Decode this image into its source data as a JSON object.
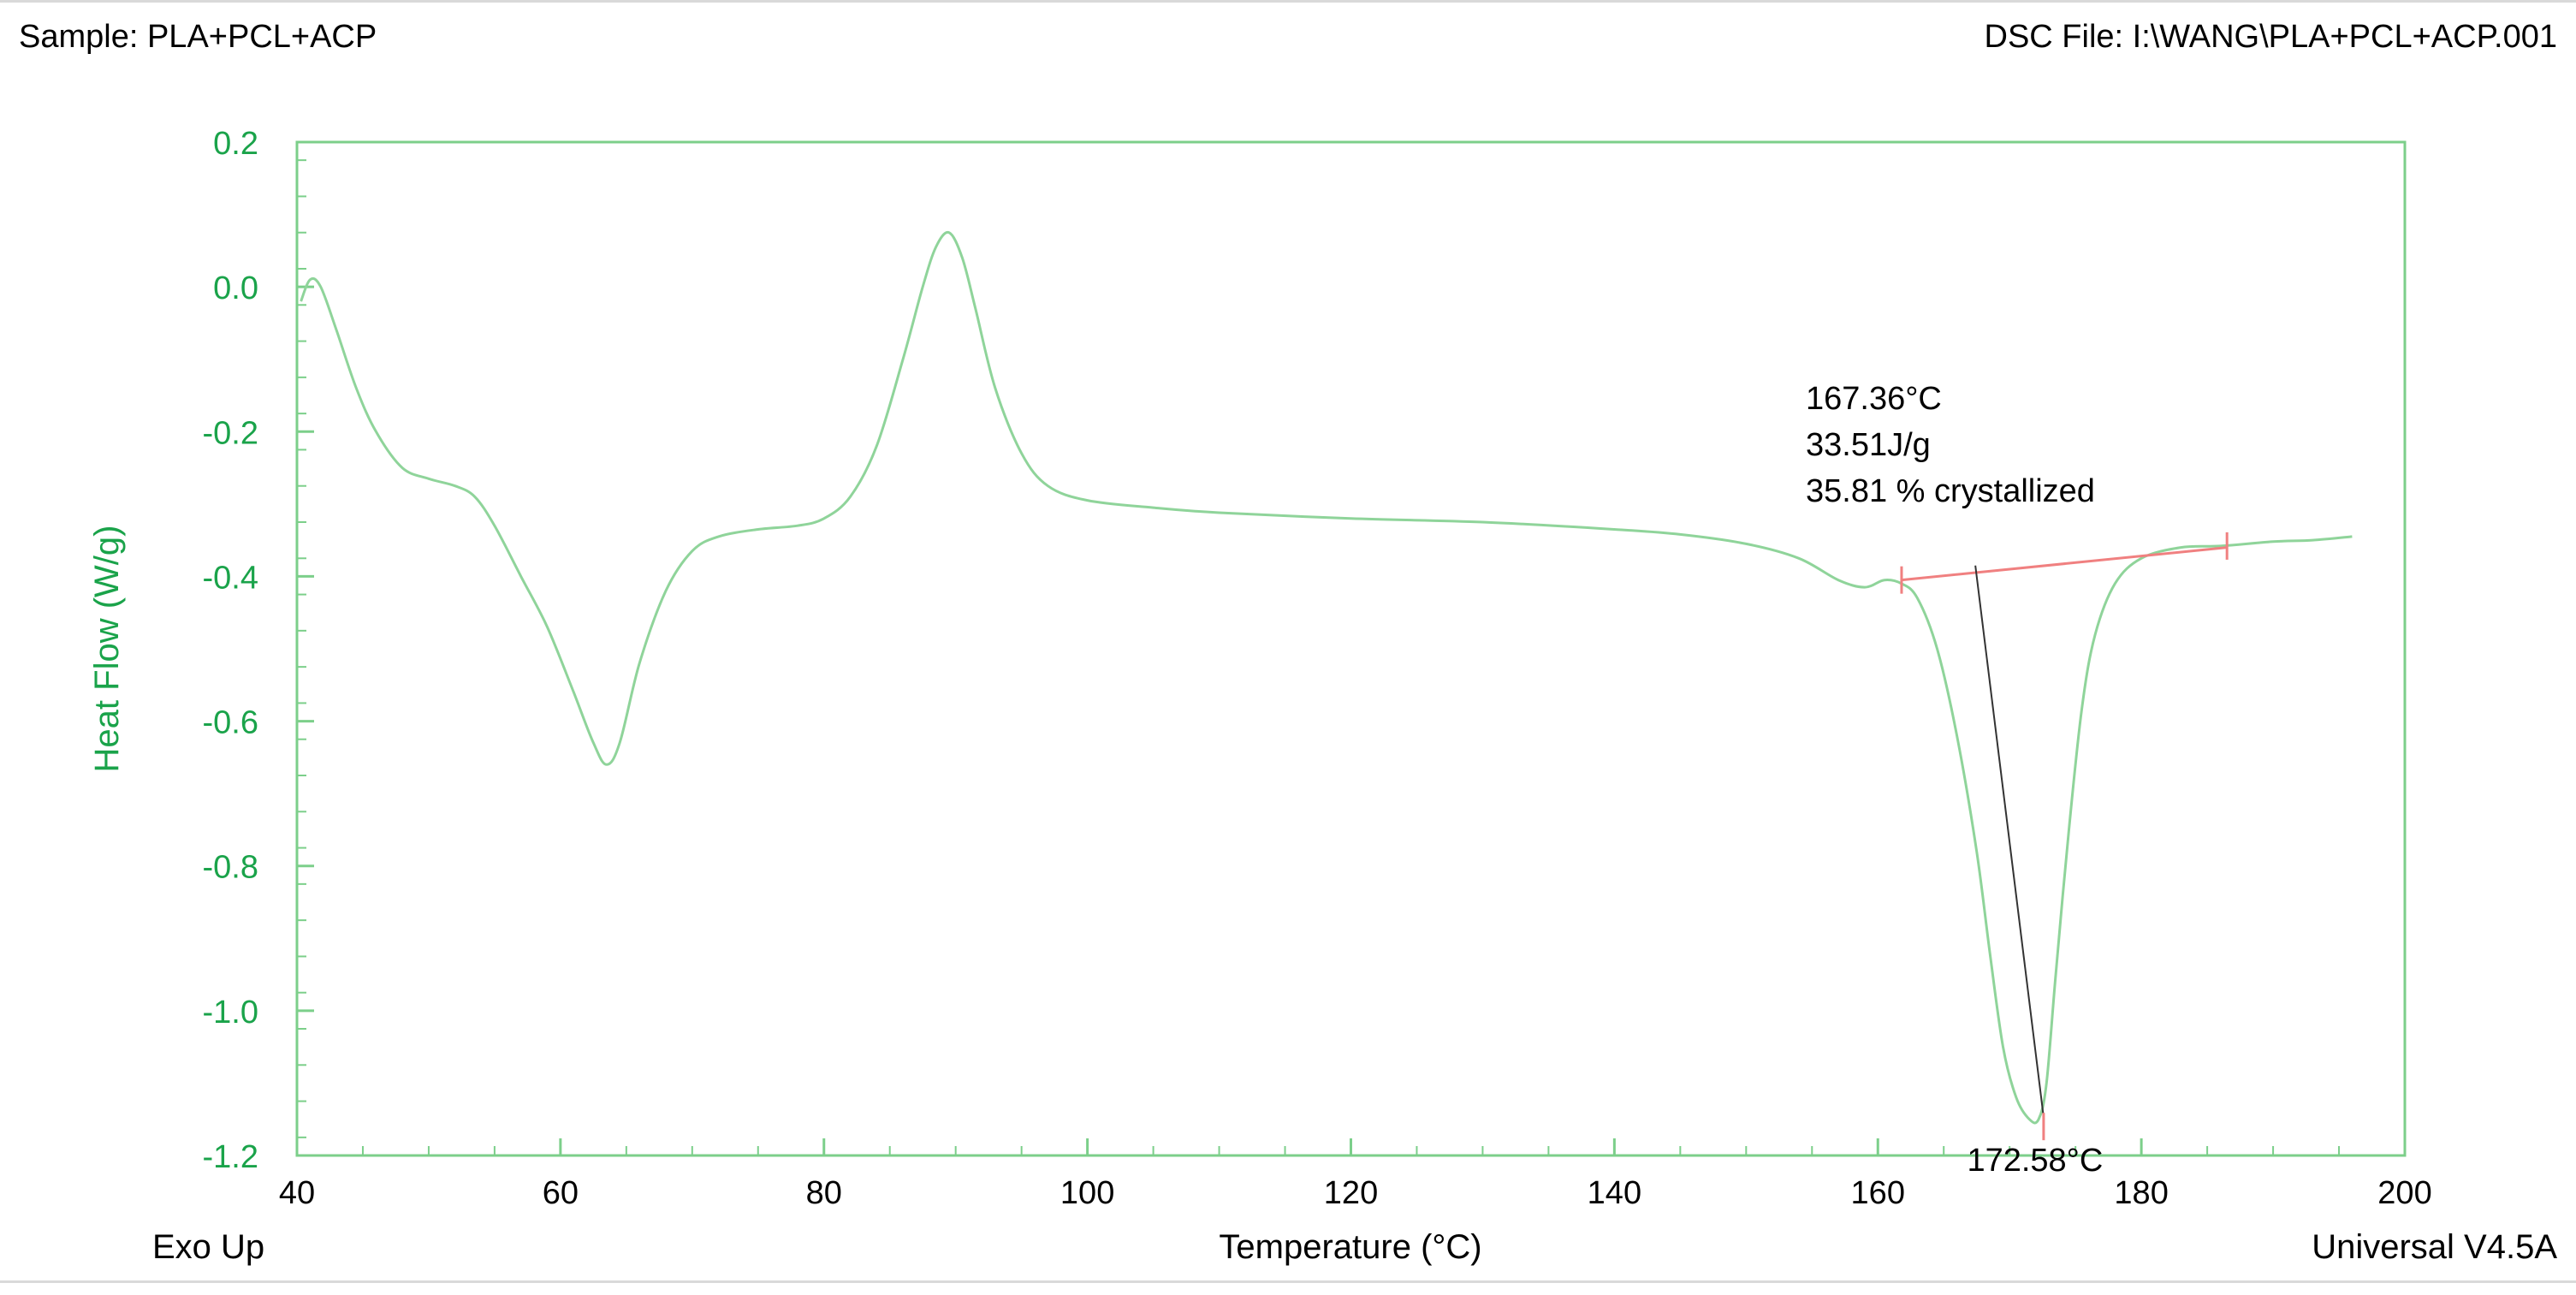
{
  "header": {
    "sample": "Sample: PLA+PCL+ACP",
    "file": "DSC File: I:\\WANG\\PLA+PCL+ACP.001"
  },
  "footer": {
    "exo": "Exo Up",
    "version": "Universal V4.5A"
  },
  "colors": {
    "curve": "#8fd49a",
    "axis": "#7ccf8a",
    "y_text": "#1aa34a",
    "baseline": "#f08080",
    "tangent": "#333333"
  },
  "chart_data": {
    "type": "line",
    "xlabel": "Temperature (°C)",
    "ylabel": "Heat Flow (W/g)",
    "xlim": [
      40,
      200
    ],
    "ylim": [
      -1.2,
      0.2
    ],
    "xticks": [
      40,
      60,
      80,
      100,
      120,
      140,
      160,
      180,
      200
    ],
    "yticks": [
      0.2,
      0.0,
      -0.2,
      -0.4,
      -0.6,
      -0.8,
      -1.0,
      -1.2
    ],
    "ytick_labels": [
      "0.2",
      "0.0",
      "-0.2",
      "-0.4",
      "-0.6",
      "-0.8",
      "-1.0",
      "-1.2"
    ],
    "grid": false,
    "series": [
      {
        "x": [
          40.3,
          41.0,
          41.8,
          43.0,
          44.5,
          46.0,
          48.0,
          50.0,
          52.0,
          53.5,
          55.0,
          57.0,
          59.0,
          61.0,
          62.5,
          63.5,
          64.5,
          66.0,
          68.0,
          70.0,
          72.0,
          75.0,
          78.0,
          80.0,
          82.0,
          84.0,
          86.0,
          87.5,
          88.5,
          89.5,
          90.5,
          91.5,
          93.0,
          95.0,
          97.0,
          100.0,
          105.0,
          110.0,
          120.0,
          130.0,
          140.0,
          145.0,
          150.0,
          154.0,
          157.0,
          159.0,
          160.5,
          161.8,
          163.0,
          164.5,
          166.0,
          167.5,
          168.5,
          169.5,
          170.5,
          171.5,
          172.2,
          172.8,
          173.5,
          174.5,
          175.5,
          176.5,
          178.0,
          180.0,
          183.0,
          186.0,
          190.0,
          193.0,
          196.0
        ],
        "y": [
          -0.02,
          0.01,
          0.0,
          -0.06,
          -0.14,
          -0.2,
          -0.25,
          -0.265,
          -0.275,
          -0.29,
          -0.33,
          -0.4,
          -0.47,
          -0.56,
          -0.63,
          -0.66,
          -0.63,
          -0.52,
          -0.42,
          -0.365,
          -0.345,
          -0.335,
          -0.33,
          -0.32,
          -0.29,
          -0.22,
          -0.1,
          0.0,
          0.055,
          0.075,
          0.04,
          -0.03,
          -0.14,
          -0.23,
          -0.275,
          -0.295,
          -0.305,
          -0.312,
          -0.32,
          -0.325,
          -0.335,
          -0.342,
          -0.355,
          -0.375,
          -0.405,
          -0.415,
          -0.405,
          -0.41,
          -0.43,
          -0.5,
          -0.62,
          -0.78,
          -0.92,
          -1.05,
          -1.12,
          -1.15,
          -1.15,
          -1.1,
          -0.95,
          -0.75,
          -0.58,
          -0.48,
          -0.41,
          -0.375,
          -0.36,
          -0.358,
          -0.352,
          -0.35,
          -0.345
        ]
      }
    ],
    "baseline": {
      "x": [
        161.8,
        186.5
      ],
      "y": [
        -0.405,
        -0.36
      ]
    },
    "tangent": {
      "x": [
        167.4,
        172.6
      ],
      "y": [
        -0.385,
        -1.15
      ]
    },
    "markers": [
      {
        "x": 161.8,
        "y": -0.405
      },
      {
        "x": 186.5,
        "y": -0.358
      },
      {
        "x": 172.58,
        "y": -1.16
      }
    ],
    "annotations": {
      "onset": "167.36°C",
      "enthalpy": "33.51J/g",
      "crystallinity": "35.81 % crystallized",
      "peak": "172.58°C"
    }
  }
}
